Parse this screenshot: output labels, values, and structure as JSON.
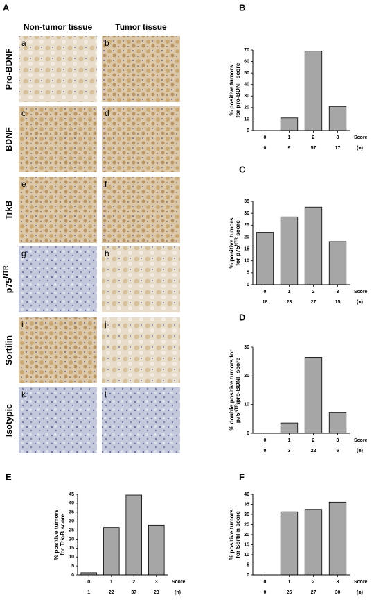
{
  "figure": {
    "panel_A": {
      "letter": "A",
      "column_headers": [
        "Non-tumor tissue",
        "Tumor tissue"
      ],
      "rows": [
        {
          "label": [
            "Pro-BDNF"
          ],
          "letters": [
            "a",
            "b"
          ]
        },
        {
          "label": [
            "BDNF"
          ],
          "letters": [
            "c",
            "d"
          ]
        },
        {
          "label": [
            "TrkB"
          ],
          "letters": [
            "e",
            "f"
          ]
        },
        {
          "label": [
            "p75",
            "NTR"
          ],
          "letters": [
            "g",
            "h"
          ]
        },
        {
          "label": [
            "Sortilin"
          ],
          "letters": [
            "i",
            "j"
          ]
        },
        {
          "label": [
            "Isotypic"
          ],
          "letters": [
            "k",
            "l"
          ]
        }
      ]
    }
  },
  "chart_data": [
    {
      "type": "bar",
      "panel": "B",
      "ylabel": [
        [
          "% positive tumors"
        ],
        [
          "for pro-BDNF score"
        ]
      ],
      "categories": [
        "0",
        "1",
        "2",
        "3"
      ],
      "values": [
        0,
        11,
        69,
        21
      ],
      "color": "#a6a6a6",
      "xlabel": "Score",
      "counts": [
        0,
        9,
        57,
        17
      ],
      "counts_label": "(n)",
      "ylim": [
        0,
        70
      ],
      "yticks": [
        0,
        10,
        20,
        30,
        40,
        50,
        60,
        70
      ]
    },
    {
      "type": "bar",
      "panel": "C",
      "ylabel": [
        [
          "% positive tumors"
        ],
        [
          "for p75",
          "NTR",
          " score"
        ]
      ],
      "categories": [
        "0",
        "1",
        "2",
        "3"
      ],
      "values": [
        22,
        28.5,
        32.6,
        18.1
      ],
      "color": "#a6a6a6",
      "xlabel": "Score",
      "counts": [
        18,
        23,
        27,
        15
      ],
      "counts_label": "(n)",
      "ylim": [
        0,
        35
      ],
      "yticks": [
        0,
        5,
        10,
        15,
        20,
        25,
        30,
        35
      ]
    },
    {
      "type": "bar",
      "panel": "D",
      "ylabel": [
        [
          "% double positive tumors for"
        ],
        [
          "p75",
          "NTR",
          "/pro-BDNF score"
        ]
      ],
      "categories": [
        "0",
        "1",
        "2",
        "3"
      ],
      "values": [
        0,
        3.6,
        26.5,
        7.2
      ],
      "color": "#a6a6a6",
      "xlabel": "Score",
      "counts": [
        0,
        3,
        22,
        6
      ],
      "counts_label": "(n)",
      "ylim": [
        0,
        30
      ],
      "yticks": [
        0,
        10,
        20,
        30
      ]
    },
    {
      "type": "bar",
      "panel": "E",
      "ylabel": [
        [
          "% positive tumors"
        ],
        [
          "for Trk-B score"
        ]
      ],
      "categories": [
        "0",
        "1",
        "2",
        "3"
      ],
      "values": [
        1.2,
        26.5,
        44.6,
        27.8
      ],
      "color": "#a6a6a6",
      "xlabel": "Score",
      "counts": [
        1,
        22,
        37,
        23
      ],
      "counts_label": "(n)",
      "ylim": [
        0,
        45
      ],
      "yticks": [
        0,
        5,
        10,
        15,
        20,
        25,
        30,
        35,
        40,
        45
      ]
    },
    {
      "type": "bar",
      "panel": "F",
      "ylabel": [
        [
          "% positive tumors"
        ],
        [
          "for Sortilin score"
        ]
      ],
      "categories": [
        "0",
        "1",
        "2",
        "3"
      ],
      "values": [
        0,
        31.3,
        32.5,
        36.1
      ],
      "color": "#a6a6a6",
      "xlabel": "Score",
      "counts": [
        0,
        26,
        27,
        30
      ],
      "counts_label": "(n)",
      "ylim": [
        0,
        40
      ],
      "yticks": [
        0,
        5,
        10,
        15,
        20,
        25,
        30,
        35,
        40
      ]
    }
  ]
}
